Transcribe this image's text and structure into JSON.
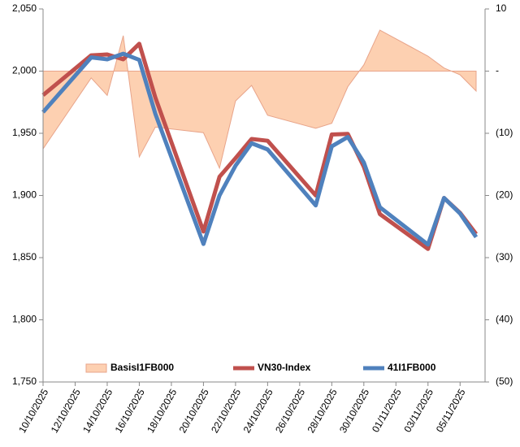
{
  "chart_data": {
    "type": "line",
    "x": [
      "10/10/2025",
      "13/10/2025",
      "14/10/2025",
      "15/10/2025",
      "16/10/2025",
      "17/10/2025",
      "20/10/2025",
      "21/10/2025",
      "22/10/2025",
      "23/10/2025",
      "24/10/2025",
      "27/10/2025",
      "28/10/2025",
      "29/10/2025",
      "30/10/2025",
      "31/10/2025",
      "03/11/2025",
      "04/11/2025",
      "05/11/2025",
      "06/11/2025"
    ],
    "xlim": [
      "10/10/2025",
      "06/11/2025"
    ],
    "xticks": [
      "10/10/2025",
      "12/10/2025",
      "14/10/2025",
      "16/10/2025",
      "18/10/2025",
      "20/10/2025",
      "22/10/2025",
      "24/10/2025",
      "26/10/2025",
      "28/10/2025",
      "30/10/2025",
      "01/11/2025",
      "03/11/2025",
      "05/11/2025"
    ],
    "ylim": [
      1750,
      2050
    ],
    "yticks": [
      {
        "value": 1750,
        "label": "1,750"
      },
      {
        "value": 1800,
        "label": "1,800"
      },
      {
        "value": 1850,
        "label": "1,850"
      },
      {
        "value": 1900,
        "label": "1,900"
      },
      {
        "value": 1950,
        "label": "1,950"
      },
      {
        "value": 2000,
        "label": "2,000"
      },
      {
        "value": 2050,
        "label": "2,050"
      }
    ],
    "y2lim": [
      -50,
      10
    ],
    "y2ticks": [
      {
        "value": -50,
        "label": "(50)"
      },
      {
        "value": -40,
        "label": "(40)"
      },
      {
        "value": -30,
        "label": "(30)"
      },
      {
        "value": -20,
        "label": "(20)"
      },
      {
        "value": -10,
        "label": "(10)"
      },
      {
        "value": 0,
        "label": "-"
      },
      10
    ],
    "grid": false,
    "legend": "bottom",
    "series": [
      {
        "name": "BasisI1FB000",
        "type": "area",
        "axis": "y2",
        "color": "#fdd0b1",
        "line_color": "#e8a48a",
        "values": [
          -12.5,
          -1.1,
          -3.9,
          5.7,
          -13.8,
          -9,
          -9.9,
          -15.6,
          -4.8,
          -2.3,
          -7.1,
          -9.2,
          -8.4,
          -2.5,
          1,
          6.6,
          2.4,
          0.5,
          -0.6,
          -3.2
        ]
      },
      {
        "name": "VN30-Index",
        "type": "line",
        "color": "#c0504d",
        "values": [
          1980.7,
          2012.7,
          2013.4,
          2009.5,
          2022,
          1978.8,
          1871,
          1915,
          1930,
          1945.4,
          1944,
          1900,
          1949,
          1949.5,
          1923,
          1885,
          1857,
          1898,
          1886,
          1869
        ]
      },
      {
        "name": "41I1FB000",
        "type": "line",
        "color": "#4f81bd",
        "values": [
          1967,
          2011,
          2009.5,
          2014,
          2009,
          1965.7,
          1861,
          1900,
          1924,
          1942,
          1937,
          1892,
          1939.5,
          1947,
          1926.5,
          1890.5,
          1860.5,
          1898,
          1885.5,
          1866.5
        ]
      }
    ]
  }
}
